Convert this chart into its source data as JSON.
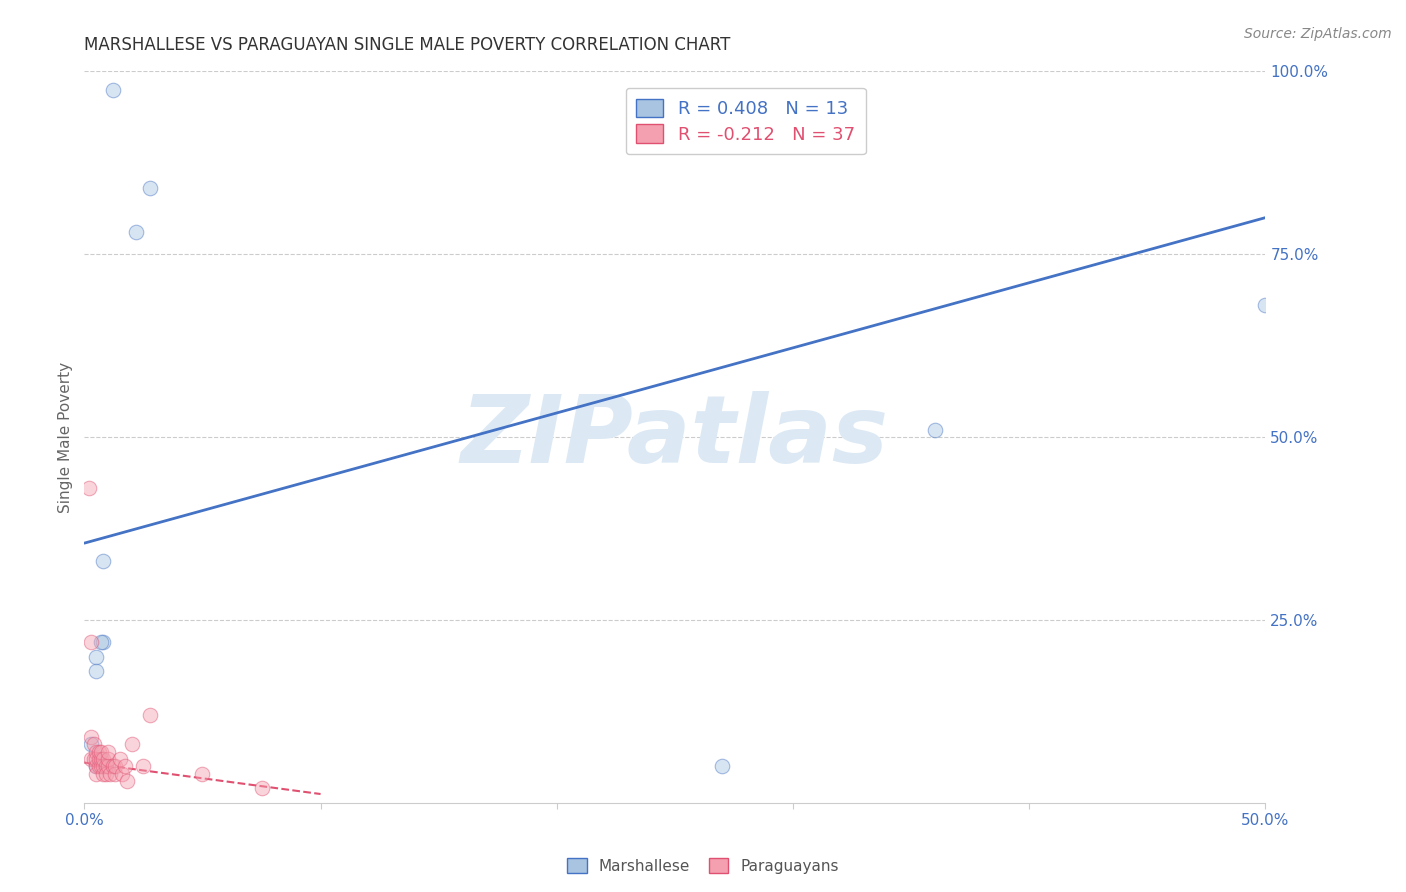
{
  "title": "MARSHALLESE VS PARAGUAYAN SINGLE MALE POVERTY CORRELATION CHART",
  "source": "Source: ZipAtlas.com",
  "xlabel_marshallese": "Marshallese",
  "xlabel_paraguayans": "Paraguayans",
  "ylabel": "Single Male Poverty",
  "xlim": [
    0.0,
    0.5
  ],
  "ylim": [
    0.0,
    1.0
  ],
  "xticks": [
    0.0,
    0.1,
    0.2,
    0.3,
    0.4,
    0.5
  ],
  "yticks": [
    0.0,
    0.25,
    0.5,
    0.75,
    1.0
  ],
  "ytick_labels_right": [
    "",
    "25.0%",
    "50.0%",
    "75.0%",
    "100.0%"
  ],
  "xtick_labels_show": [
    "0.0%",
    "",
    "",
    "",
    "",
    "50.0%"
  ],
  "marshallese_R": 0.408,
  "marshallese_N": 13,
  "paraguayan_R": -0.212,
  "paraguayan_N": 37,
  "marshallese_color": "#a8c4e0",
  "paraguayan_color": "#f4a0b0",
  "marshallese_line_color": "#4472c4",
  "paraguayan_line_color": "#e05070",
  "background_color": "#ffffff",
  "grid_color": "#cccccc",
  "watermark_text": "ZIPatlas",
  "watermark_color": "#dce9f5",
  "marshallese_x": [
    0.012,
    0.022,
    0.028,
    0.008,
    0.008,
    0.007,
    0.005,
    0.005,
    0.003,
    0.36,
    0.5,
    0.27,
    0.005
  ],
  "marshallese_y": [
    0.975,
    0.78,
    0.84,
    0.33,
    0.22,
    0.22,
    0.2,
    0.18,
    0.08,
    0.51,
    0.68,
    0.05,
    0.05
  ],
  "paraguayan_x": [
    0.002,
    0.003,
    0.003,
    0.004,
    0.004,
    0.005,
    0.005,
    0.005,
    0.005,
    0.006,
    0.006,
    0.006,
    0.007,
    0.007,
    0.007,
    0.008,
    0.008,
    0.008,
    0.009,
    0.009,
    0.01,
    0.01,
    0.01,
    0.011,
    0.012,
    0.013,
    0.013,
    0.015,
    0.016,
    0.017,
    0.018,
    0.02,
    0.025,
    0.028,
    0.05,
    0.075,
    0.003
  ],
  "paraguayan_y": [
    0.43,
    0.06,
    0.09,
    0.06,
    0.08,
    0.07,
    0.05,
    0.04,
    0.06,
    0.05,
    0.06,
    0.07,
    0.05,
    0.06,
    0.07,
    0.04,
    0.05,
    0.06,
    0.05,
    0.04,
    0.05,
    0.06,
    0.07,
    0.04,
    0.05,
    0.04,
    0.05,
    0.06,
    0.04,
    0.05,
    0.03,
    0.08,
    0.05,
    0.12,
    0.04,
    0.02,
    0.22
  ],
  "marshallese_trendline_x": [
    0.0,
    0.5
  ],
  "marshallese_trendline_y": [
    0.355,
    0.8
  ],
  "paraguayan_trendline_x": [
    0.0,
    0.1
  ],
  "paraguayan_trendline_y": [
    0.055,
    0.012
  ],
  "marker_size": 110,
  "marker_alpha": 0.45,
  "title_fontsize": 12,
  "tick_fontsize": 11,
  "legend_fontsize": 13
}
